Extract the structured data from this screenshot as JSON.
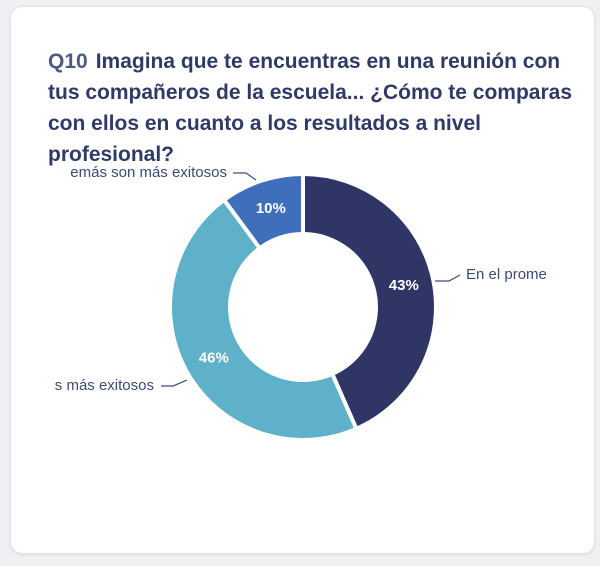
{
  "question": {
    "number": "Q10",
    "text": "Imagina que te encuentras en una reunión con tus compañeros de la escuela... ¿Cómo te comparas con ellos en cuanto a los resultados a nivel profesional?"
  },
  "chart_data": {
    "type": "pie",
    "donut": true,
    "title": "Imagina que te encuentras en una reunión con tus compañeros de la escuela... ¿Cómo te comparas con ellos en cuanto a los resultados a nivel profesional?",
    "slices": [
      {
        "label": "En el prome",
        "value": 43,
        "display": "43%",
        "color": "#2f3666"
      },
      {
        "label": "s más exitosos",
        "value": 46,
        "display": "46%",
        "color": "#5fb0c9"
      },
      {
        "label": "emás son más exitosos",
        "value": 10,
        "display": "10%",
        "color": "#3f6fbb"
      }
    ]
  }
}
